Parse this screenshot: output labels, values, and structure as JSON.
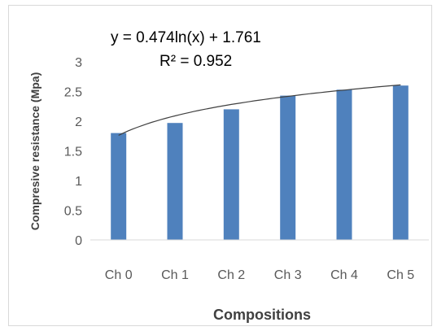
{
  "chart_data": {
    "type": "bar",
    "categories": [
      "Ch 0",
      "Ch 1",
      "Ch 2",
      "Ch 3",
      "Ch 4",
      "Ch 5"
    ],
    "values": [
      1.8,
      1.97,
      2.2,
      2.43,
      2.53,
      2.6
    ],
    "xlabel": "Compositions",
    "ylabel": "Compresive resistance (Mpa)",
    "ylim": [
      0,
      3
    ],
    "yticks": [
      "0",
      "0.5",
      "1",
      "1.5",
      "2",
      "2.5",
      "3"
    ],
    "grid": false,
    "bar_color": "#4f81bd",
    "trendline": {
      "type": "logarithmic",
      "equation": "y = 0.474ln(x) + 1.761",
      "r_squared": "R² = 0.952",
      "a": 0.474,
      "b": 1.761,
      "color": "#404040"
    }
  }
}
